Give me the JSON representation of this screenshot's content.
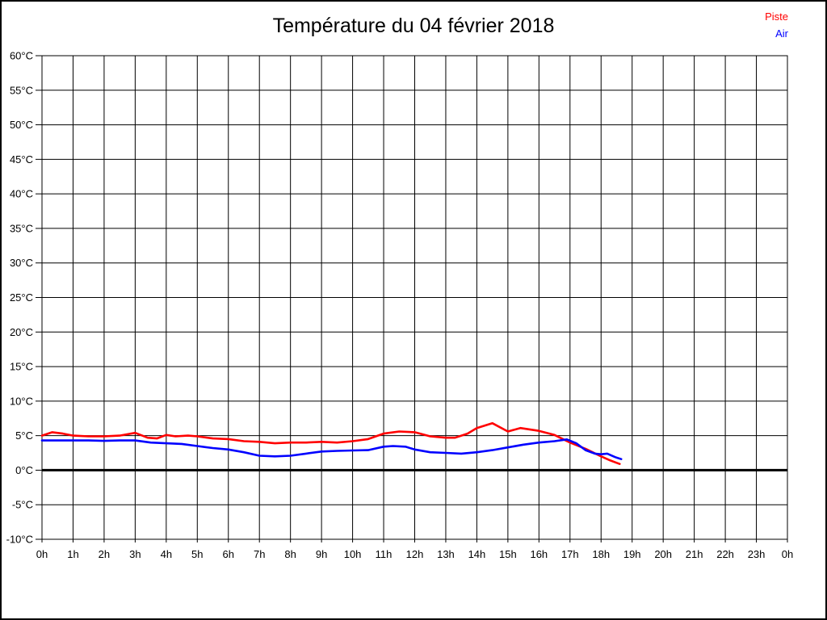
{
  "page": {
    "background": "#ffffff",
    "border_color": "#000000"
  },
  "chart_data": {
    "type": "line",
    "title": "Température du 04 février 2018",
    "xlabel": "",
    "ylabel": "",
    "xlim": [
      0,
      24
    ],
    "ylim": [
      -10,
      60
    ],
    "grid": true,
    "grid_color": "#000000",
    "x_tick_values": [
      0,
      1,
      2,
      3,
      4,
      5,
      6,
      7,
      8,
      9,
      10,
      11,
      12,
      13,
      14,
      15,
      16,
      17,
      18,
      19,
      20,
      21,
      22,
      23,
      24
    ],
    "x_tick_labels": [
      "0h",
      "1h",
      "2h",
      "3h",
      "4h",
      "5h",
      "6h",
      "7h",
      "8h",
      "9h",
      "10h",
      "11h",
      "12h",
      "13h",
      "14h",
      "15h",
      "16h",
      "17h",
      "18h",
      "19h",
      "20h",
      "21h",
      "22h",
      "23h",
      "0h"
    ],
    "y_tick_values": [
      -10,
      -5,
      0,
      5,
      10,
      15,
      20,
      25,
      30,
      35,
      40,
      45,
      50,
      55,
      60
    ],
    "y_tick_labels": [
      "-10°C",
      "-5°C",
      "0°C",
      "5°C",
      "10°C",
      "15°C",
      "20°C",
      "25°C",
      "30°C",
      "35°C",
      "40°C",
      "45°C",
      "50°C",
      "55°C",
      "60°C"
    ],
    "zero_line": {
      "value": 0,
      "color": "#000000",
      "width": 3
    },
    "legend": {
      "position": "top-right",
      "entries": [
        {
          "label": "Piste",
          "color": "#ff0000"
        },
        {
          "label": "Air",
          "color": "#0000ff"
        }
      ]
    },
    "series": [
      {
        "name": "Piste",
        "color": "#ff0000",
        "points": [
          [
            0,
            5.0
          ],
          [
            0.33,
            5.5
          ],
          [
            0.67,
            5.3
          ],
          [
            1,
            5.0
          ],
          [
            1.5,
            4.9
          ],
          [
            2,
            4.9
          ],
          [
            2.5,
            5.0
          ],
          [
            3,
            5.4
          ],
          [
            3.4,
            4.7
          ],
          [
            3.7,
            4.6
          ],
          [
            4,
            5.1
          ],
          [
            4.3,
            4.9
          ],
          [
            4.7,
            5.0
          ],
          [
            5,
            4.9
          ],
          [
            5.5,
            4.6
          ],
          [
            6,
            4.5
          ],
          [
            6.5,
            4.2
          ],
          [
            7,
            4.1
          ],
          [
            7.5,
            3.9
          ],
          [
            8,
            4.0
          ],
          [
            8.5,
            4.0
          ],
          [
            9,
            4.1
          ],
          [
            9.5,
            4.0
          ],
          [
            10,
            4.2
          ],
          [
            10.5,
            4.5
          ],
          [
            11,
            5.3
          ],
          [
            11.5,
            5.6
          ],
          [
            12,
            5.5
          ],
          [
            12.5,
            4.9
          ],
          [
            13,
            4.7
          ],
          [
            13.3,
            4.7
          ],
          [
            13.7,
            5.3
          ],
          [
            14,
            6.1
          ],
          [
            14.5,
            6.8
          ],
          [
            15,
            5.6
          ],
          [
            15.4,
            6.1
          ],
          [
            16,
            5.7
          ],
          [
            16.5,
            5.1
          ],
          [
            17,
            4.0
          ],
          [
            17.5,
            3.1
          ],
          [
            18,
            2.0
          ],
          [
            18.3,
            1.4
          ],
          [
            18.6,
            0.9
          ]
        ]
      },
      {
        "name": "Air",
        "color": "#0000ff",
        "points": [
          [
            0,
            4.3
          ],
          [
            0.5,
            4.3
          ],
          [
            1,
            4.3
          ],
          [
            1.5,
            4.3
          ],
          [
            2,
            4.25
          ],
          [
            2.5,
            4.3
          ],
          [
            3,
            4.3
          ],
          [
            3.5,
            4.0
          ],
          [
            4,
            3.9
          ],
          [
            4.5,
            3.8
          ],
          [
            5,
            3.5
          ],
          [
            5.5,
            3.2
          ],
          [
            6,
            3.0
          ],
          [
            6.5,
            2.6
          ],
          [
            7,
            2.1
          ],
          [
            7.5,
            2.0
          ],
          [
            8,
            2.1
          ],
          [
            8.5,
            2.4
          ],
          [
            9,
            2.7
          ],
          [
            9.5,
            2.8
          ],
          [
            10,
            2.85
          ],
          [
            10.5,
            2.9
          ],
          [
            11,
            3.4
          ],
          [
            11.3,
            3.5
          ],
          [
            11.7,
            3.4
          ],
          [
            12,
            3.0
          ],
          [
            12.5,
            2.6
          ],
          [
            13,
            2.5
          ],
          [
            13.5,
            2.4
          ],
          [
            14,
            2.6
          ],
          [
            14.5,
            2.9
          ],
          [
            15,
            3.3
          ],
          [
            15.5,
            3.7
          ],
          [
            16,
            4.0
          ],
          [
            16.5,
            4.2
          ],
          [
            16.9,
            4.45
          ],
          [
            17.2,
            3.9
          ],
          [
            17.5,
            2.9
          ],
          [
            17.8,
            2.4
          ],
          [
            18,
            2.3
          ],
          [
            18.2,
            2.4
          ],
          [
            18.45,
            1.9
          ],
          [
            18.65,
            1.6
          ]
        ]
      }
    ]
  }
}
